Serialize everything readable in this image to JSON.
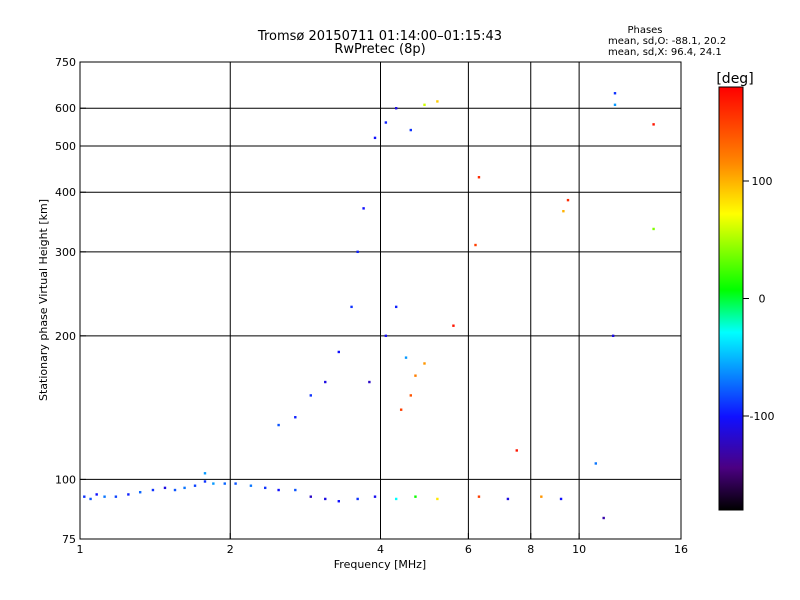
{
  "chart_data": {
    "type": "scatter",
    "title": "Tromsø 20150711 01:14:00–01:15:43",
    "subtitle": "RwPretec (8p)",
    "xlabel": "Frequency [MHz]",
    "ylabel": "Stationary phase Virtual Height [km]",
    "x_scale": "log",
    "y_scale": "log",
    "xlim": [
      1,
      16
    ],
    "ylim": [
      75,
      750
    ],
    "x_ticks": [
      1,
      2,
      4,
      6,
      8,
      10,
      16
    ],
    "x_tick_labels": [
      "1",
      "2",
      "4",
      "6",
      "8",
      "10",
      "16"
    ],
    "x_grid": [
      2,
      4,
      6,
      8,
      10
    ],
    "y_ticks": [
      75,
      100,
      200,
      300,
      400,
      500,
      600,
      750
    ],
    "y_tick_labels": [
      "75",
      "100",
      "200",
      "300",
      "400",
      "500",
      "600",
      "750"
    ],
    "y_grid": [
      100,
      200,
      300,
      400,
      500,
      600
    ],
    "grid": true,
    "phase_stats": {
      "title": "Phases",
      "line_o": "mean, sd,O: -88.1, 20.2",
      "line_x": "mean, sd,X:  96.4, 24.1"
    },
    "colorbar": {
      "label": "[deg]",
      "range": [
        -180,
        180
      ],
      "ticks": [
        100,
        0,
        -100
      ],
      "tick_labels": [
        "100",
        "0",
        "-100"
      ],
      "colormap": "rainbow"
    },
    "series": [
      {
        "values": [
          {
            "x": 1.02,
            "y": 92,
            "c": -90
          },
          {
            "x": 1.05,
            "y": 91,
            "c": -80
          },
          {
            "x": 1.08,
            "y": 93,
            "c": -100
          },
          {
            "x": 1.12,
            "y": 92,
            "c": -70
          },
          {
            "x": 1.18,
            "y": 92,
            "c": -85
          },
          {
            "x": 1.25,
            "y": 93,
            "c": -95
          },
          {
            "x": 1.32,
            "y": 94,
            "c": -75
          },
          {
            "x": 1.4,
            "y": 95,
            "c": -90
          },
          {
            "x": 1.48,
            "y": 96,
            "c": -110
          },
          {
            "x": 1.55,
            "y": 95,
            "c": -80
          },
          {
            "x": 1.62,
            "y": 96,
            "c": -70
          },
          {
            "x": 1.7,
            "y": 97,
            "c": -85
          },
          {
            "x": 1.78,
            "y": 99,
            "c": -90
          },
          {
            "x": 1.85,
            "y": 98,
            "c": -60
          },
          {
            "x": 1.95,
            "y": 98,
            "c": -75
          },
          {
            "x": 2.05,
            "y": 98,
            "c": -80
          },
          {
            "x": 2.2,
            "y": 97,
            "c": -70
          },
          {
            "x": 2.35,
            "y": 96,
            "c": -90
          },
          {
            "x": 2.5,
            "y": 95,
            "c": -100
          },
          {
            "x": 2.7,
            "y": 95,
            "c": -80
          },
          {
            "x": 2.9,
            "y": 92,
            "c": -120
          },
          {
            "x": 3.1,
            "y": 91,
            "c": -110
          },
          {
            "x": 3.3,
            "y": 90,
            "c": -100
          },
          {
            "x": 3.6,
            "y": 91,
            "c": -90
          },
          {
            "x": 3.9,
            "y": 92,
            "c": -105
          },
          {
            "x": 4.3,
            "y": 91,
            "c": -30
          },
          {
            "x": 4.7,
            "y": 92,
            "c": 10
          },
          {
            "x": 5.2,
            "y": 91,
            "c": 80
          },
          {
            "x": 6.3,
            "y": 92,
            "c": 150
          },
          {
            "x": 7.2,
            "y": 91,
            "c": -110
          },
          {
            "x": 8.4,
            "y": 92,
            "c": 110
          },
          {
            "x": 9.2,
            "y": 91,
            "c": -100
          },
          {
            "x": 11.2,
            "y": 83,
            "c": -130
          },
          {
            "x": 2.5,
            "y": 130,
            "c": -80
          },
          {
            "x": 2.7,
            "y": 135,
            "c": -95
          },
          {
            "x": 2.9,
            "y": 150,
            "c": -90
          },
          {
            "x": 3.1,
            "y": 160,
            "c": -110
          },
          {
            "x": 3.3,
            "y": 185,
            "c": -100
          },
          {
            "x": 3.5,
            "y": 230,
            "c": -90
          },
          {
            "x": 3.6,
            "y": 300,
            "c": -95
          },
          {
            "x": 3.7,
            "y": 370,
            "c": -100
          },
          {
            "x": 3.8,
            "y": 160,
            "c": -120
          },
          {
            "x": 4.1,
            "y": 200,
            "c": -105
          },
          {
            "x": 4.3,
            "y": 230,
            "c": -95
          },
          {
            "x": 4.5,
            "y": 180,
            "c": -60
          },
          {
            "x": 4.7,
            "y": 165,
            "c": 120
          },
          {
            "x": 4.9,
            "y": 175,
            "c": 110
          },
          {
            "x": 4.6,
            "y": 150,
            "c": 140
          },
          {
            "x": 4.4,
            "y": 140,
            "c": 150
          },
          {
            "x": 3.9,
            "y": 520,
            "c": -100
          },
          {
            "x": 4.1,
            "y": 560,
            "c": -95
          },
          {
            "x": 4.3,
            "y": 600,
            "c": -110
          },
          {
            "x": 4.6,
            "y": 540,
            "c": -90
          },
          {
            "x": 4.9,
            "y": 610,
            "c": 60
          },
          {
            "x": 5.2,
            "y": 620,
            "c": 90
          },
          {
            "x": 6.3,
            "y": 430,
            "c": 160
          },
          {
            "x": 6.2,
            "y": 310,
            "c": 150
          },
          {
            "x": 5.6,
            "y": 210,
            "c": 170
          },
          {
            "x": 7.5,
            "y": 115,
            "c": 170
          },
          {
            "x": 9.5,
            "y": 385,
            "c": 160
          },
          {
            "x": 9.3,
            "y": 365,
            "c": 100
          },
          {
            "x": 11.8,
            "y": 645,
            "c": -90
          },
          {
            "x": 11.8,
            "y": 610,
            "c": -60
          },
          {
            "x": 14.1,
            "y": 555,
            "c": 170
          },
          {
            "x": 14.1,
            "y": 335,
            "c": 40
          },
          {
            "x": 11.7,
            "y": 200,
            "c": -110
          },
          {
            "x": 10.8,
            "y": 108,
            "c": -70
          },
          {
            "x": 1.78,
            "y": 103,
            "c": -60
          }
        ]
      }
    ]
  }
}
